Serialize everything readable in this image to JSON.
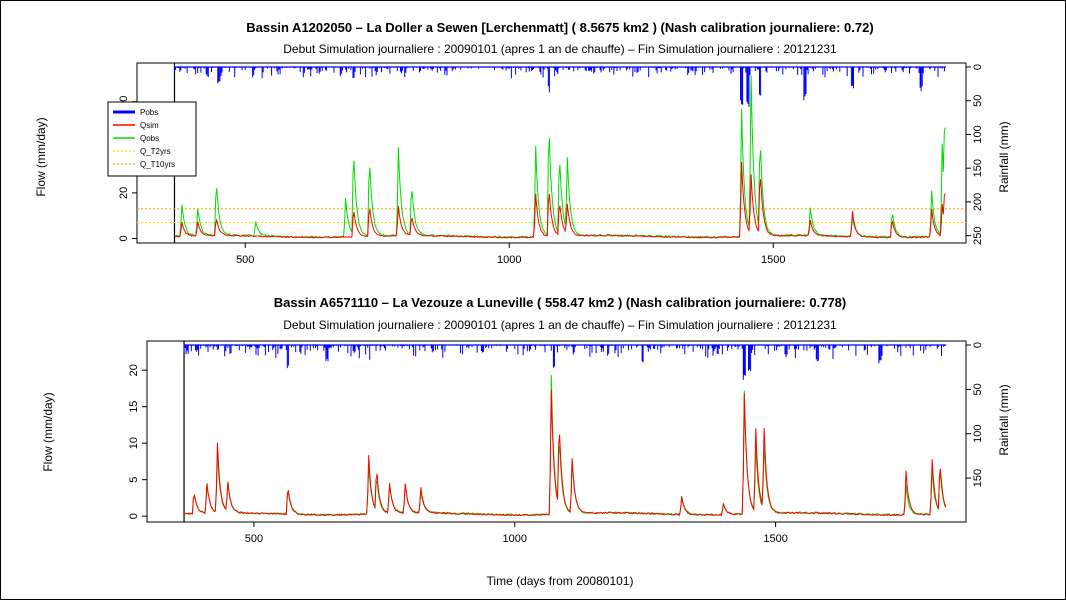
{
  "colors": {
    "pobs": "#0000ff",
    "qsim": "#ff0000",
    "qobs": "#00dd00",
    "q_t2yrs": "#e6e600",
    "q_t10yrs": "#ff9900"
  },
  "xlabel": "Time (days from 20080101)",
  "chart_data": [
    {
      "type": "line",
      "title": "Bassin A1202050 – La Doller a Sewen [Lerchenmatt] ( 8.5675 km2 ) (Nash calibration journaliere: 0.72)",
      "subtitle": "Debut Simulation journaliere : 20090101 (apres 1 an de chauffe) – Fin Simulation journaliere : 20121231",
      "ylabel": "Flow (mm/day)",
      "y2label": "Rainfall (mm)",
      "xlim": [
        295,
        1865
      ],
      "ylim": [
        -2,
        77
      ],
      "y2lim": [
        0,
        255
      ],
      "x_ticks": [
        500,
        1000,
        1500
      ],
      "y_ticks": [
        0,
        20,
        40,
        60
      ],
      "y2_ticks": [
        0,
        50,
        100,
        150,
        200,
        250
      ],
      "x_range": [
        366,
        1827
      ],
      "legend": {
        "position": "top-left",
        "entries": [
          "Pobs",
          "Qsim",
          "Qobs",
          "Q_T2yrs",
          "Q_T10yrs"
        ]
      },
      "thresholds": {
        "Q_T2yrs": 7,
        "Q_T10yrs": 13
      },
      "qobs_peaks": [
        [
          380,
          14
        ],
        [
          410,
          12
        ],
        [
          445,
          25
        ],
        [
          520,
          6
        ],
        [
          690,
          17
        ],
        [
          705,
          39
        ],
        [
          735,
          36
        ],
        [
          790,
          39
        ],
        [
          815,
          23
        ],
        [
          1050,
          40
        ],
        [
          1075,
          51
        ],
        [
          1095,
          36
        ],
        [
          1110,
          32
        ],
        [
          1440,
          56
        ],
        [
          1458,
          68
        ],
        [
          1475,
          42
        ],
        [
          1570,
          12
        ],
        [
          1650,
          9
        ],
        [
          1725,
          12
        ],
        [
          1800,
          20
        ],
        [
          1820,
          40
        ],
        [
          1825,
          41
        ]
      ],
      "qsim_peaks": [
        [
          380,
          6
        ],
        [
          410,
          6
        ],
        [
          445,
          8
        ],
        [
          705,
          13
        ],
        [
          735,
          14
        ],
        [
          790,
          13
        ],
        [
          815,
          9
        ],
        [
          1050,
          19
        ],
        [
          1075,
          22
        ],
        [
          1095,
          16
        ],
        [
          1110,
          13
        ],
        [
          1440,
          33
        ],
        [
          1458,
          26
        ],
        [
          1475,
          29
        ],
        [
          1570,
          7
        ],
        [
          1650,
          11
        ],
        [
          1725,
          8
        ],
        [
          1800,
          12
        ],
        [
          1820,
          14
        ],
        [
          1825,
          17
        ]
      ],
      "pobs_peaks": [
        [
          450,
          25
        ],
        [
          705,
          20
        ],
        [
          1075,
          40
        ],
        [
          1440,
          65
        ],
        [
          1452,
          70
        ],
        [
          1475,
          55
        ],
        [
          1560,
          50
        ],
        [
          1650,
          35
        ],
        [
          1780,
          40
        ],
        [
          1830,
          30
        ]
      ]
    },
    {
      "type": "line",
      "title": "Bassin A6571110 – La Vezouze a Luneville ( 558.47 km2 ) (Nash calibration journaliere: 0.778)",
      "subtitle": "Debut Simulation journaliere : 20090101 (apres 1 an de chauffe) – Fin Simulation journaliere : 20121231",
      "ylabel": "Flow (mm/day)",
      "y2label": "Rainfall (mm)",
      "xlim": [
        295,
        1865
      ],
      "ylim": [
        -0.8,
        24
      ],
      "y2lim": [
        0,
        195
      ],
      "x_ticks": [
        500,
        1000,
        1500
      ],
      "y_ticks": [
        0,
        5,
        10,
        15,
        20
      ],
      "y2_ticks": [
        0,
        50,
        100,
        150
      ],
      "x_range": [
        366,
        1827
      ],
      "qobs_peaks": [
        [
          385,
          3
        ],
        [
          410,
          4
        ],
        [
          430,
          8
        ],
        [
          450,
          4
        ],
        [
          565,
          3.5
        ],
        [
          720,
          7
        ],
        [
          735,
          5
        ],
        [
          760,
          4
        ],
        [
          790,
          4
        ],
        [
          820,
          3
        ],
        [
          1070,
          19
        ],
        [
          1085,
          10
        ],
        [
          1110,
          7
        ],
        [
          1320,
          2.5
        ],
        [
          1400,
          1.5
        ],
        [
          1440,
          17
        ],
        [
          1462,
          9
        ],
        [
          1478,
          9
        ],
        [
          1750,
          4
        ],
        [
          1800,
          6
        ],
        [
          1815,
          6
        ]
      ],
      "qsim_peaks": [
        [
          385,
          3
        ],
        [
          410,
          4
        ],
        [
          430,
          9.5
        ],
        [
          450,
          4
        ],
        [
          565,
          4
        ],
        [
          720,
          8
        ],
        [
          735,
          6
        ],
        [
          760,
          4
        ],
        [
          790,
          4
        ],
        [
          820,
          3.5
        ],
        [
          1070,
          17
        ],
        [
          1085,
          12
        ],
        [
          1110,
          7.5
        ],
        [
          1320,
          2.5
        ],
        [
          1400,
          1.5
        ],
        [
          1440,
          16.5
        ],
        [
          1462,
          11.5
        ],
        [
          1478,
          11
        ],
        [
          1750,
          6
        ],
        [
          1800,
          7.5
        ],
        [
          1815,
          7
        ]
      ],
      "pobs_peaks": [
        [
          565,
          30
        ],
        [
          640,
          20
        ],
        [
          1075,
          28
        ],
        [
          1245,
          25
        ],
        [
          1440,
          40
        ],
        [
          1450,
          37
        ],
        [
          1580,
          20
        ],
        [
          1700,
          22
        ]
      ]
    }
  ]
}
